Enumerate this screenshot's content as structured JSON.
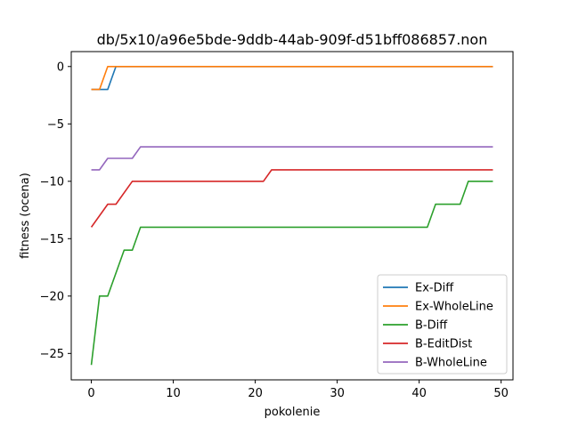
{
  "chart_data": {
    "type": "line",
    "title": "db/5x10/a96e5bde-9ddb-44ab-909f-d51bff086857.non",
    "xlabel": "pokolenie",
    "ylabel": "fitness (ocena)",
    "xlim": [
      -2.45,
      51.45
    ],
    "ylim": [
      -27.3,
      1.3
    ],
    "xticks": [
      0,
      10,
      20,
      30,
      40,
      50
    ],
    "yticks": [
      -25,
      -20,
      -15,
      -10,
      -5,
      0
    ],
    "grid": false,
    "legend_position": "lower-right",
    "series": [
      {
        "name": "Ex-Diff",
        "color": "#1f77b4",
        "x": [
          0,
          2,
          3,
          49
        ],
        "y": [
          -2,
          -2,
          0,
          0
        ]
      },
      {
        "name": "Ex-WholeLine",
        "color": "#ff7f0e",
        "x": [
          0,
          1,
          2,
          49
        ],
        "y": [
          -2,
          -2,
          0,
          0
        ]
      },
      {
        "name": "B-Diff",
        "color": "#2ca02c",
        "x": [
          0,
          1,
          2,
          4,
          5,
          6,
          41,
          42,
          45,
          46,
          49
        ],
        "y": [
          -26,
          -20,
          -20,
          -16,
          -16,
          -14,
          -14,
          -12,
          -12,
          -10,
          -10
        ]
      },
      {
        "name": "B-EditDist",
        "color": "#d62728",
        "x": [
          0,
          2,
          3,
          5,
          21,
          22,
          49
        ],
        "y": [
          -14,
          -12,
          -12,
          -10,
          -10,
          -9,
          -9
        ]
      },
      {
        "name": "B-WholeLine",
        "color": "#9467bd",
        "x": [
          0,
          1,
          2,
          5,
          6,
          49
        ],
        "y": [
          -9,
          -9,
          -8,
          -8,
          -7,
          -7
        ]
      }
    ]
  }
}
